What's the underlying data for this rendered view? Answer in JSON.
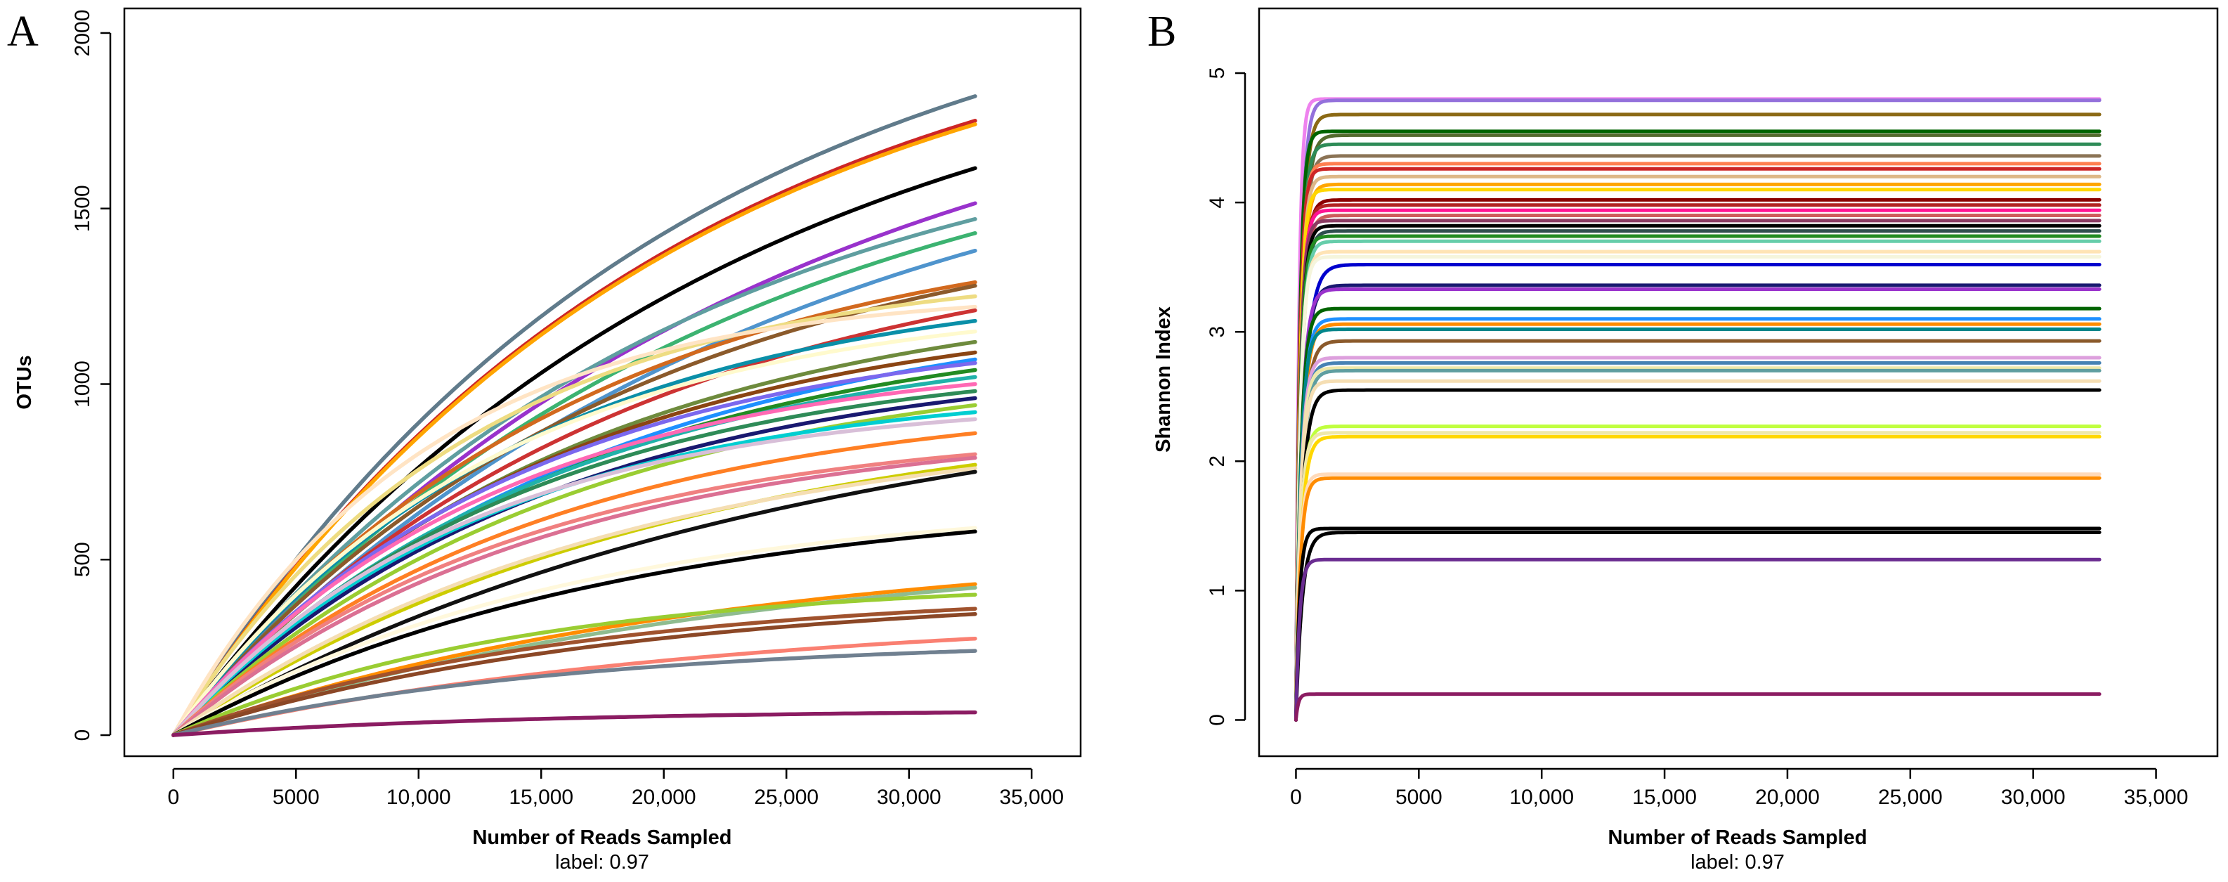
{
  "chart_data": [
    {
      "panel": "A",
      "type": "line",
      "title": "",
      "xlabel": "Number of Reads Sampled",
      "subtitle": "label: 0.97",
      "ylabel": "OTUs",
      "xlim": [
        -2000,
        37000
      ],
      "ylim": [
        -60,
        2070
      ],
      "xticks": [
        0,
        5000,
        10000,
        15000,
        20000,
        25000,
        30000,
        35000
      ],
      "xtick_labels": [
        "0",
        "5000",
        "10,000",
        "15,000",
        "20,000",
        "25,000",
        "30,000",
        "35,000"
      ],
      "yticks": [
        0,
        500,
        1000,
        1500,
        2000
      ],
      "ytick_labels": [
        "0",
        "500",
        "1000",
        "1500",
        "2000"
      ],
      "grid": false,
      "x_end": 32700,
      "series_model": "rarefaction: OTUs = final * (1 - exp(-x/k)) / (1 - exp(-32700/k))",
      "series": [
        {
          "final": 1820,
          "k": 20000,
          "color": "#607B8B"
        },
        {
          "final": 1750,
          "k": 20000,
          "color": "#CD2626"
        },
        {
          "final": 1740,
          "k": 20000,
          "color": "#FFA500"
        },
        {
          "final": 1615,
          "k": 22000,
          "color": "#000000"
        },
        {
          "final": 1515,
          "k": 24000,
          "color": "#9932CC"
        },
        {
          "final": 1470,
          "k": 20000,
          "color": "#5F9EA0"
        },
        {
          "final": 1430,
          "k": 22000,
          "color": "#3CB371"
        },
        {
          "final": 1380,
          "k": 24000,
          "color": "#4F94CD"
        },
        {
          "final": 1290,
          "k": 16000,
          "color": "#D2691E"
        },
        {
          "final": 1280,
          "k": 18000,
          "color": "#8B5A2B"
        },
        {
          "final": 1250,
          "k": 12000,
          "color": "#EEDC82"
        },
        {
          "final": 1220,
          "k": 10000,
          "color": "#FFE4C4"
        },
        {
          "final": 1210,
          "k": 18000,
          "color": "#CD3333"
        },
        {
          "final": 1180,
          "k": 14000,
          "color": "#0A8FA8"
        },
        {
          "final": 1150,
          "k": 13000,
          "color": "#FFFACD"
        },
        {
          "final": 1120,
          "k": 16000,
          "color": "#6E8B3D"
        },
        {
          "final": 1090,
          "k": 15000,
          "color": "#8B4513"
        },
        {
          "final": 1070,
          "k": 17000,
          "color": "#1E90FF"
        },
        {
          "final": 1060,
          "k": 14000,
          "color": "#7B68EE"
        },
        {
          "final": 1040,
          "k": 16000,
          "color": "#228B22"
        },
        {
          "final": 1020,
          "k": 15000,
          "color": "#20B2AA"
        },
        {
          "final": 1000,
          "k": 13000,
          "color": "#FF69B4"
        },
        {
          "final": 980,
          "k": 14000,
          "color": "#2E8B57"
        },
        {
          "final": 960,
          "k": 15000,
          "color": "#191970"
        },
        {
          "final": 940,
          "k": 16000,
          "color": "#9ACD32"
        },
        {
          "final": 920,
          "k": 13000,
          "color": "#00CED1"
        },
        {
          "final": 900,
          "k": 12000,
          "color": "#D8BFD8"
        },
        {
          "final": 860,
          "k": 15000,
          "color": "#FF7F24"
        },
        {
          "final": 800,
          "k": 14000,
          "color": "#F08080"
        },
        {
          "final": 790,
          "k": 15000,
          "color": "#DB7093"
        },
        {
          "final": 770,
          "k": 20000,
          "color": "#CDCD00"
        },
        {
          "final": 760,
          "k": 18000,
          "color": "#F5DEB3"
        },
        {
          "final": 750,
          "k": 25000,
          "color": "#111111"
        },
        {
          "final": 590,
          "k": 16000,
          "color": "#FFF8DC"
        },
        {
          "final": 580,
          "k": 18000,
          "color": "#000000"
        },
        {
          "final": 430,
          "k": 22000,
          "color": "#FF8C00"
        },
        {
          "final": 420,
          "k": 24000,
          "color": "#8FBC8F"
        },
        {
          "final": 400,
          "k": 14000,
          "color": "#9ACD32"
        },
        {
          "final": 360,
          "k": 16000,
          "color": "#A0522D"
        },
        {
          "final": 345,
          "k": 18000,
          "color": "#8B4726"
        },
        {
          "final": 275,
          "k": 22000,
          "color": "#FA8072"
        },
        {
          "final": 240,
          "k": 16000,
          "color": "#708090"
        },
        {
          "final": 65,
          "k": 15000,
          "color": "#8B1C62"
        }
      ]
    },
    {
      "panel": "B",
      "type": "line",
      "title": "",
      "xlabel": "Number of Reads Sampled",
      "subtitle": "label: 0.97",
      "ylabel": "Shannon Index",
      "xlim": [
        -1500,
        37500
      ],
      "ylim": [
        -0.28,
        5.5
      ],
      "xticks": [
        0,
        5000,
        10000,
        15000,
        20000,
        25000,
        30000,
        35000
      ],
      "xtick_labels": [
        "0",
        "5000",
        "10,000",
        "15,000",
        "20,000",
        "25,000",
        "30,000",
        "35,000"
      ],
      "yticks": [
        0,
        1,
        2,
        3,
        4,
        5
      ],
      "ytick_labels": [
        "0",
        "1",
        "2",
        "3",
        "4",
        "5"
      ],
      "grid": false,
      "x_end": 32700,
      "series_model": "saturation: H = final * (1 - exp(-x/k))",
      "series": [
        {
          "final": 4.8,
          "k": 120,
          "color": "#EE82EE"
        },
        {
          "final": 4.79,
          "k": 180,
          "color": "#9370DB"
        },
        {
          "final": 4.68,
          "k": 200,
          "color": "#8B6914"
        },
        {
          "final": 4.55,
          "k": 150,
          "color": "#006400"
        },
        {
          "final": 4.52,
          "k": 220,
          "color": "#556B2F"
        },
        {
          "final": 4.45,
          "k": 180,
          "color": "#2E8B57"
        },
        {
          "final": 4.36,
          "k": 200,
          "color": "#8B7355"
        },
        {
          "final": 4.3,
          "k": 160,
          "color": "#FF7F50"
        },
        {
          "final": 4.26,
          "k": 150,
          "color": "#CD2626"
        },
        {
          "final": 4.2,
          "k": 170,
          "color": "#DEB887"
        },
        {
          "final": 4.14,
          "k": 190,
          "color": "#FFA500"
        },
        {
          "final": 4.1,
          "k": 160,
          "color": "#FFD700"
        },
        {
          "final": 4.02,
          "k": 200,
          "color": "#8B0000"
        },
        {
          "final": 3.98,
          "k": 180,
          "color": "#B22222"
        },
        {
          "final": 3.94,
          "k": 170,
          "color": "#FF1493"
        },
        {
          "final": 3.9,
          "k": 200,
          "color": "#CD5C5C"
        },
        {
          "final": 3.86,
          "k": 160,
          "color": "#8B3A62"
        },
        {
          "final": 3.82,
          "k": 180,
          "color": "#000000"
        },
        {
          "final": 3.78,
          "k": 200,
          "color": "#2F4F4F"
        },
        {
          "final": 3.74,
          "k": 170,
          "color": "#228B22"
        },
        {
          "final": 3.7,
          "k": 190,
          "color": "#66CDAA"
        },
        {
          "final": 3.62,
          "k": 180,
          "color": "#FFE4B5"
        },
        {
          "final": 3.58,
          "k": 170,
          "color": "#F5F5DC"
        },
        {
          "final": 3.52,
          "k": 300,
          "color": "#0000CD"
        },
        {
          "final": 3.36,
          "k": 250,
          "color": "#191970"
        },
        {
          "final": 3.33,
          "k": 220,
          "color": "#9932CC"
        },
        {
          "final": 3.18,
          "k": 200,
          "color": "#006400"
        },
        {
          "final": 3.1,
          "k": 220,
          "color": "#1E90FF"
        },
        {
          "final": 3.06,
          "k": 230,
          "color": "#FF8C00"
        },
        {
          "final": 3.02,
          "k": 200,
          "color": "#00868B"
        },
        {
          "final": 2.93,
          "k": 250,
          "color": "#8B5A2B"
        },
        {
          "final": 2.8,
          "k": 200,
          "color": "#DDA0DD"
        },
        {
          "final": 2.76,
          "k": 220,
          "color": "#4682B4"
        },
        {
          "final": 2.72,
          "k": 200,
          "color": "#EEE8AA"
        },
        {
          "final": 2.7,
          "k": 230,
          "color": "#5F9EA0"
        },
        {
          "final": 2.62,
          "k": 200,
          "color": "#F5DEB3"
        },
        {
          "final": 2.55,
          "k": 250,
          "color": "#000000"
        },
        {
          "final": 2.27,
          "k": 200,
          "color": "#C0FF3E"
        },
        {
          "final": 2.22,
          "k": 180,
          "color": "#EEE8AA"
        },
        {
          "final": 2.19,
          "k": 220,
          "color": "#FFD700"
        },
        {
          "final": 1.9,
          "k": 160,
          "color": "#FFDAB9"
        },
        {
          "final": 1.87,
          "k": 180,
          "color": "#FF8C00"
        },
        {
          "final": 1.48,
          "k": 150,
          "color": "#000000"
        },
        {
          "final": 1.45,
          "k": 250,
          "color": "#000000"
        },
        {
          "final": 1.24,
          "k": 150,
          "color": "#6A2C91"
        },
        {
          "final": 0.2,
          "k": 100,
          "color": "#8B1C62"
        }
      ]
    }
  ]
}
